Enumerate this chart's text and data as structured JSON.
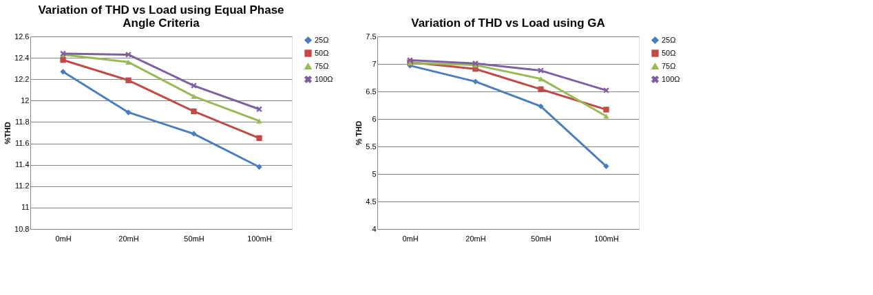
{
  "chart_data": [
    {
      "type": "line",
      "title": "Variation of THD vs Load using Equal Phase Angle Criteria",
      "ylabel": "%THD",
      "categories": [
        "0mH",
        "20mH",
        "50mH",
        "100mH"
      ],
      "ylim": [
        10.8,
        12.6
      ],
      "yticks": [
        10.8,
        11,
        11.2,
        11.4,
        11.6,
        11.8,
        12,
        12.2,
        12.4,
        12.6
      ],
      "grid": "y",
      "legend": "right",
      "line_style": "solid",
      "series": [
        {
          "name": "25Ω",
          "color": "#4a7ebb",
          "marker": "diamond",
          "values": [
            12.27,
            11.89,
            11.69,
            11.38
          ]
        },
        {
          "name": "50Ω",
          "color": "#be4b48",
          "marker": "square",
          "values": [
            12.38,
            12.19,
            11.9,
            11.65
          ]
        },
        {
          "name": "75Ω",
          "color": "#98b954",
          "marker": "triangle",
          "values": [
            12.43,
            12.36,
            12.04,
            11.81
          ]
        },
        {
          "name": "100Ω",
          "color": "#7d60a0",
          "marker": "cross",
          "values": [
            12.44,
            12.43,
            12.14,
            11.92
          ]
        }
      ]
    },
    {
      "type": "line",
      "title": "Variation of THD vs Load using GA",
      "ylabel": "% THD",
      "categories": [
        "0mH",
        "20mH",
        "50mH",
        "100mH"
      ],
      "ylim": [
        4,
        7.5
      ],
      "yticks": [
        4,
        4.5,
        5,
        5.5,
        6,
        6.5,
        7,
        7.5
      ],
      "grid": "y",
      "legend": "right",
      "line_style": "solid",
      "series": [
        {
          "name": "25Ω",
          "color": "#4a7ebb",
          "marker": "diamond",
          "values": [
            6.97,
            6.68,
            6.23,
            5.14
          ]
        },
        {
          "name": "50Ω",
          "color": "#be4b48",
          "marker": "square",
          "values": [
            7.03,
            6.91,
            6.54,
            6.17
          ]
        },
        {
          "name": "75Ω",
          "color": "#98b954",
          "marker": "triangle",
          "values": [
            7.02,
            6.98,
            6.73,
            6.05
          ]
        },
        {
          "name": "100Ω",
          "color": "#7d60a0",
          "marker": "cross",
          "values": [
            7.07,
            7.01,
            6.88,
            6.52
          ]
        }
      ]
    }
  ]
}
